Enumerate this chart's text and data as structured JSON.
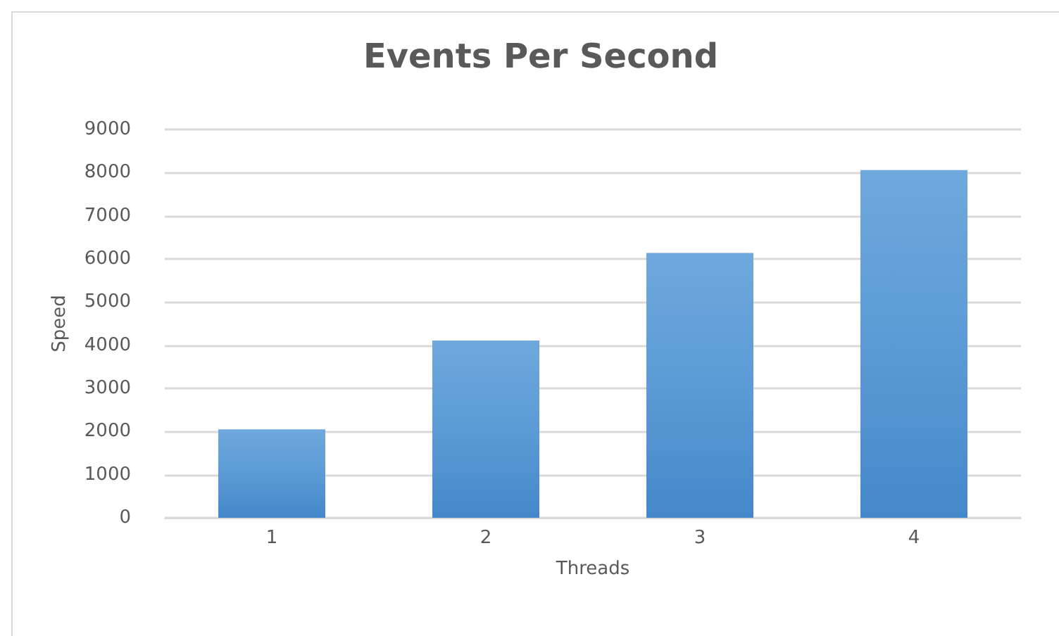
{
  "chart_data": {
    "type": "bar",
    "title": "Events Per Second",
    "xlabel": "Threads",
    "ylabel": "Speed",
    "categories": [
      "1",
      "2",
      "3",
      "4"
    ],
    "values": [
      2050,
      4110,
      6140,
      8060
    ],
    "color": "#5b9bd5",
    "ylim": [
      0,
      9000
    ],
    "yticks": [
      0,
      1000,
      2000,
      3000,
      4000,
      5000,
      6000,
      7000,
      8000,
      9000
    ],
    "grid": "y"
  }
}
